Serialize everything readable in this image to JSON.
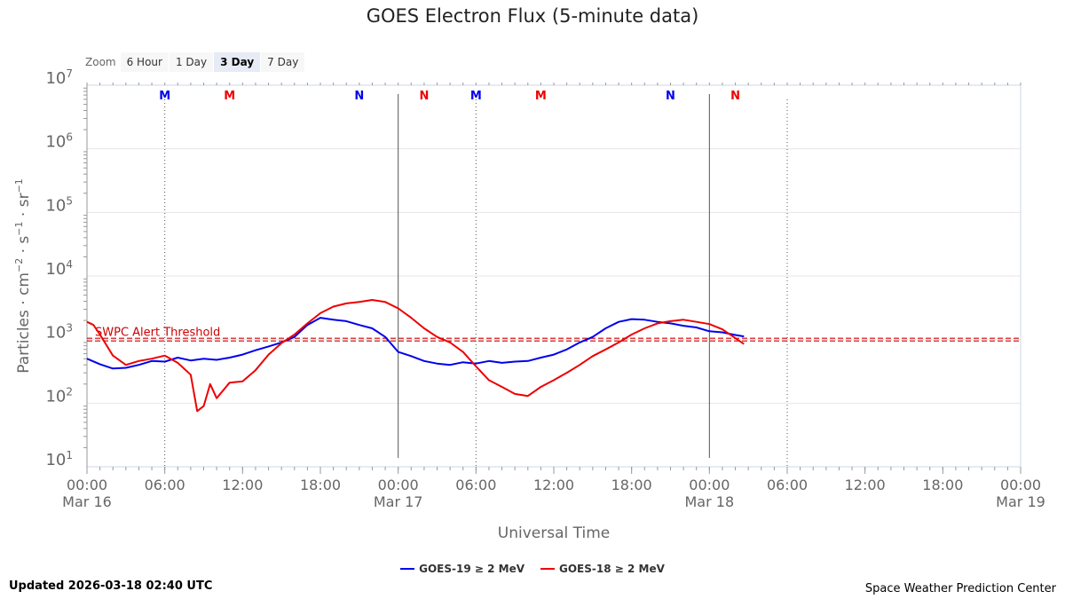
{
  "title": "GOES Electron Flux (5-minute data)",
  "zoom": {
    "label": "Zoom",
    "buttons": [
      "6 Hour",
      "1 Day",
      "3 Day",
      "7 Day"
    ],
    "active": "3 Day"
  },
  "colors": {
    "goes19": "#0000ee",
    "goes18": "#ee0000",
    "threshold": "#cc0000"
  },
  "chart_data": {
    "type": "line",
    "title": "GOES Electron Flux (5-minute data)",
    "xlabel": "Universal Time",
    "ylabel_parts": [
      "Particles · cm",
      "−2",
      " · s",
      "−1",
      " · sr",
      "−1"
    ],
    "y_scale": "log",
    "ylim": [
      10.0,
      10000000.0
    ],
    "y_ticks": [
      10.0,
      100.0,
      1000.0,
      10000.0,
      100000.0,
      1000000.0,
      10000000.0
    ],
    "y_tick_labels": [
      [
        "10",
        "1"
      ],
      [
        "10",
        "2"
      ],
      [
        "10",
        "3"
      ],
      [
        "10",
        "4"
      ],
      [
        "10",
        "5"
      ],
      [
        "10",
        "6"
      ],
      [
        "10",
        "7"
      ]
    ],
    "xlim": [
      "2026-03-16 00:00",
      "2026-03-19 00:00"
    ],
    "x_ticks": [
      {
        "time": "2026-03-16 00:00",
        "label": "00:00",
        "date": "Mar 16"
      },
      {
        "time": "2026-03-16 06:00",
        "label": "06:00",
        "date": ""
      },
      {
        "time": "2026-03-16 12:00",
        "label": "12:00",
        "date": ""
      },
      {
        "time": "2026-03-16 18:00",
        "label": "18:00",
        "date": ""
      },
      {
        "time": "2026-03-17 00:00",
        "label": "00:00",
        "date": "Mar 17"
      },
      {
        "time": "2026-03-17 06:00",
        "label": "06:00",
        "date": ""
      },
      {
        "time": "2026-03-17 12:00",
        "label": "12:00",
        "date": ""
      },
      {
        "time": "2026-03-17 18:00",
        "label": "18:00",
        "date": ""
      },
      {
        "time": "2026-03-18 00:00",
        "label": "00:00",
        "date": "Mar 18"
      },
      {
        "time": "2026-03-18 06:00",
        "label": "06:00",
        "date": ""
      },
      {
        "time": "2026-03-18 12:00",
        "label": "12:00",
        "date": ""
      },
      {
        "time": "2026-03-18 18:00",
        "label": "18:00",
        "date": ""
      },
      {
        "time": "2026-03-19 00:00",
        "label": "00:00",
        "date": "Mar 19"
      }
    ],
    "day_boundaries": [
      "2026-03-17 00:00",
      "2026-03-18 00:00"
    ],
    "threshold": {
      "label": "SWPC Alert Threshold",
      "value": 1000
    },
    "markers": [
      {
        "label": "M",
        "time": "2026-03-16 06:00",
        "color": "#0000ee",
        "dotted": true
      },
      {
        "label": "M",
        "time": "2026-03-16 11:00",
        "color": "#ee0000",
        "dotted": false
      },
      {
        "label": "N",
        "time": "2026-03-16 21:00",
        "color": "#0000ee",
        "dotted": false
      },
      {
        "label": "N",
        "time": "2026-03-17 02:00",
        "color": "#ee0000",
        "dotted": false
      },
      {
        "label": "M",
        "time": "2026-03-17 06:00",
        "color": "#0000ee",
        "dotted": true
      },
      {
        "label": "M",
        "time": "2026-03-17 11:00",
        "color": "#ee0000",
        "dotted": false
      },
      {
        "label": "N",
        "time": "2026-03-17 21:00",
        "color": "#0000ee",
        "dotted": false
      },
      {
        "label": "N",
        "time": "2026-03-18 02:00",
        "color": "#ee0000",
        "dotted": false
      },
      {
        "label": "",
        "time": "2026-03-18 06:00",
        "color": "#0000ee",
        "dotted": true
      }
    ],
    "series": [
      {
        "name": "GOES-19 ≥ 2 MeV",
        "color": "#0000ee",
        "times": [
          "2026-03-16 00:00",
          "2026-03-16 01:00",
          "2026-03-16 02:00",
          "2026-03-16 03:00",
          "2026-03-16 04:00",
          "2026-03-16 05:00",
          "2026-03-16 06:00",
          "2026-03-16 07:00",
          "2026-03-16 08:00",
          "2026-03-16 09:00",
          "2026-03-16 10:00",
          "2026-03-16 11:00",
          "2026-03-16 12:00",
          "2026-03-16 13:00",
          "2026-03-16 14:00",
          "2026-03-16 15:00",
          "2026-03-16 16:00",
          "2026-03-16 17:00",
          "2026-03-16 18:00",
          "2026-03-16 19:00",
          "2026-03-16 20:00",
          "2026-03-16 21:00",
          "2026-03-16 22:00",
          "2026-03-16 23:00",
          "2026-03-17 00:00",
          "2026-03-17 01:00",
          "2026-03-17 02:00",
          "2026-03-17 03:00",
          "2026-03-17 04:00",
          "2026-03-17 05:00",
          "2026-03-17 06:00",
          "2026-03-17 07:00",
          "2026-03-17 08:00",
          "2026-03-17 09:00",
          "2026-03-17 10:00",
          "2026-03-17 11:00",
          "2026-03-17 12:00",
          "2026-03-17 13:00",
          "2026-03-17 14:00",
          "2026-03-17 15:00",
          "2026-03-17 16:00",
          "2026-03-17 17:00",
          "2026-03-17 18:00",
          "2026-03-17 19:00",
          "2026-03-17 20:00",
          "2026-03-17 21:00",
          "2026-03-17 22:00",
          "2026-03-17 23:00",
          "2026-03-18 00:00",
          "2026-03-18 01:00",
          "2026-03-18 02:00",
          "2026-03-18 02:40"
        ],
        "values": [
          500,
          410,
          350,
          360,
          400,
          460,
          450,
          520,
          470,
          500,
          480,
          520,
          580,
          680,
          780,
          900,
          1100,
          1700,
          2200,
          2050,
          1950,
          1700,
          1500,
          1100,
          640,
          550,
          460,
          420,
          400,
          440,
          420,
          460,
          430,
          450,
          460,
          520,
          580,
          700,
          900,
          1100,
          1500,
          1900,
          2100,
          2050,
          1900,
          1800,
          1650,
          1550,
          1350,
          1300,
          1180,
          1120
        ]
      },
      {
        "name": "GOES-18 ≥ 2 MeV",
        "color": "#ee0000",
        "times": [
          "2026-03-16 00:00",
          "2026-03-16 00:30",
          "2026-03-16 01:00",
          "2026-03-16 02:00",
          "2026-03-16 03:00",
          "2026-03-16 04:00",
          "2026-03-16 05:00",
          "2026-03-16 06:00",
          "2026-03-16 07:00",
          "2026-03-16 08:00",
          "2026-03-16 08:30",
          "2026-03-16 09:00",
          "2026-03-16 09:30",
          "2026-03-16 10:00",
          "2026-03-16 11:00",
          "2026-03-16 12:00",
          "2026-03-16 13:00",
          "2026-03-16 14:00",
          "2026-03-16 15:00",
          "2026-03-16 16:00",
          "2026-03-16 17:00",
          "2026-03-16 18:00",
          "2026-03-16 19:00",
          "2026-03-16 20:00",
          "2026-03-16 21:00",
          "2026-03-16 22:00",
          "2026-03-16 23:00",
          "2026-03-17 00:00",
          "2026-03-17 01:00",
          "2026-03-17 02:00",
          "2026-03-17 03:00",
          "2026-03-17 04:00",
          "2026-03-17 05:00",
          "2026-03-17 06:00",
          "2026-03-17 07:00",
          "2026-03-17 08:00",
          "2026-03-17 09:00",
          "2026-03-17 10:00",
          "2026-03-17 11:00",
          "2026-03-17 12:00",
          "2026-03-17 13:00",
          "2026-03-17 14:00",
          "2026-03-17 15:00",
          "2026-03-17 16:00",
          "2026-03-17 17:00",
          "2026-03-17 18:00",
          "2026-03-17 19:00",
          "2026-03-17 20:00",
          "2026-03-17 21:00",
          "2026-03-17 22:00",
          "2026-03-17 23:00",
          "2026-03-18 00:00",
          "2026-03-18 01:00",
          "2026-03-18 02:00",
          "2026-03-18 02:40"
        ],
        "values": [
          1900,
          1700,
          1200,
          560,
          400,
          460,
          500,
          560,
          430,
          280,
          75,
          90,
          200,
          120,
          210,
          220,
          330,
          580,
          880,
          1200,
          1800,
          2600,
          3300,
          3700,
          3900,
          4200,
          3900,
          3100,
          2200,
          1500,
          1100,
          900,
          640,
          380,
          230,
          180,
          140,
          130,
          180,
          230,
          300,
          400,
          550,
          700,
          900,
          1200,
          1500,
          1800,
          1950,
          2050,
          1900,
          1750,
          1450,
          1050,
          850
        ]
      }
    ]
  },
  "footer": {
    "updated": "Updated 2026-03-18 02:40 UTC",
    "credits": "Space Weather Prediction Center"
  }
}
